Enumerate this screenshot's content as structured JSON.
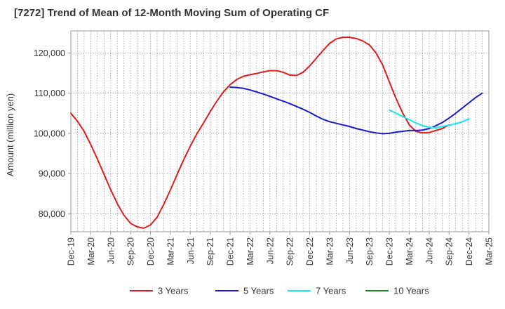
{
  "title": "[7272]  Trend of Mean of 12-Month Moving Sum of Operating CF",
  "chart_data": {
    "type": "line",
    "title": "[7272]  Trend of Mean of 12-Month Moving Sum of Operating CF",
    "xlabel": "",
    "ylabel": "Amount (million yen)",
    "ylim": [
      75500,
      125500
    ],
    "yticks": [
      80000,
      90000,
      100000,
      110000,
      120000
    ],
    "ytick_labels": [
      "80,000",
      "90,000",
      "100,000",
      "110,000",
      "120,000"
    ],
    "xtick_labels": [
      "Dec-19",
      "Mar-20",
      "Jun-20",
      "Sep-20",
      "Dec-20",
      "Mar-21",
      "Jun-21",
      "Sep-21",
      "Dec-21",
      "Mar-22",
      "Jun-22",
      "Sep-22",
      "Dec-22",
      "Mar-23",
      "Jun-23",
      "Sep-23",
      "Dec-23",
      "Mar-24",
      "Jun-24",
      "Sep-24",
      "Dec-24",
      "Mar-25"
    ],
    "grid": true,
    "legend_position": "bottom",
    "series": [
      {
        "name": "3 Years",
        "color": "#dd1c1c",
        "start_index": 0,
        "values": [
          105000,
          103000,
          100500,
          97200,
          93600,
          89800,
          86000,
          82500,
          79600,
          77600,
          76700,
          76400,
          77200,
          79100,
          82300,
          85900,
          89700,
          93400,
          96800,
          99900,
          102600,
          105400,
          108000,
          110300,
          112100,
          113400,
          114200,
          114600,
          114900,
          115300,
          115600,
          115600,
          115200,
          114500,
          114400,
          115200,
          116800,
          118700,
          120600,
          122400,
          123500,
          123900,
          123900,
          123600,
          123000,
          122000,
          120000,
          117000,
          112800,
          108700,
          105100,
          102100,
          100500,
          100100,
          100200,
          100700,
          101200,
          102100
        ]
      },
      {
        "name": "5 Years",
        "color": "#1a1acc",
        "start_index": 24,
        "values": [
          111500,
          111400,
          111200,
          110800,
          110300,
          109800,
          109200,
          108600,
          108000,
          107400,
          106700,
          106000,
          105200,
          104300,
          103500,
          102900,
          102500,
          102100,
          101700,
          101200,
          100800,
          100400,
          100100,
          99900,
          100000,
          100300,
          100500,
          100700,
          100700,
          100800,
          101200,
          101900,
          102700,
          103800,
          105000,
          106300,
          107600,
          108900,
          110000
        ]
      },
      {
        "name": "7 Years",
        "color": "#17e3ea",
        "start_index": 48,
        "values": [
          105800,
          105000,
          104200,
          103400,
          102600,
          101900,
          101500,
          101400,
          101700,
          102000,
          102400,
          102900,
          103600
        ]
      },
      {
        "name": "10 Years",
        "color": "#1e8c1e",
        "start_index": 0,
        "values": []
      }
    ]
  }
}
